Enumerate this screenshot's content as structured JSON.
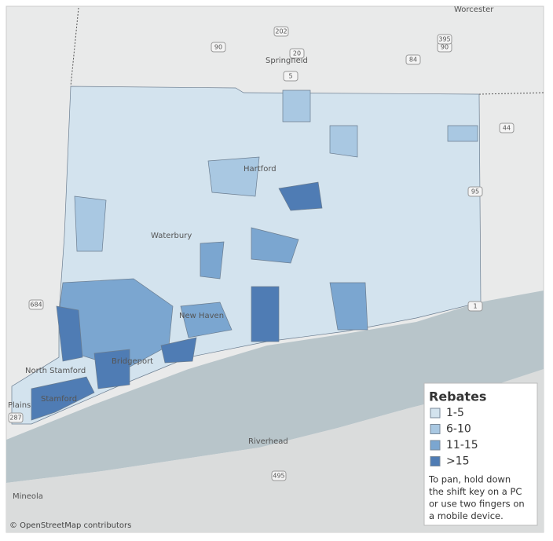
{
  "map": {
    "places": [
      "Worcester",
      "Springfield",
      "Hartford",
      "Waterbury",
      "New Haven",
      "North Stamford",
      "Bridgeport",
      "Stamford",
      "Plains",
      "Riverhead",
      "Mineola"
    ],
    "shields": [
      "202",
      "20",
      "90",
      "90",
      "5",
      "84",
      "395",
      "44",
      "95",
      "1",
      "684",
      "287",
      "495"
    ],
    "attribution": "© OpenStreetMap contributors"
  },
  "legend": {
    "title": "Rebates",
    "items": [
      {
        "label": "1-5",
        "color": "#d3e3ee"
      },
      {
        "label": "6-10",
        "color": "#a9c8e2"
      },
      {
        "label": "11-15",
        "color": "#7ba6d0"
      },
      {
        "label": ">15",
        "color": "#4f7cb4"
      }
    ],
    "note": [
      "To pan, hold down",
      "the shift key on a PC",
      "or use two fingers on",
      "a mobile device."
    ]
  }
}
